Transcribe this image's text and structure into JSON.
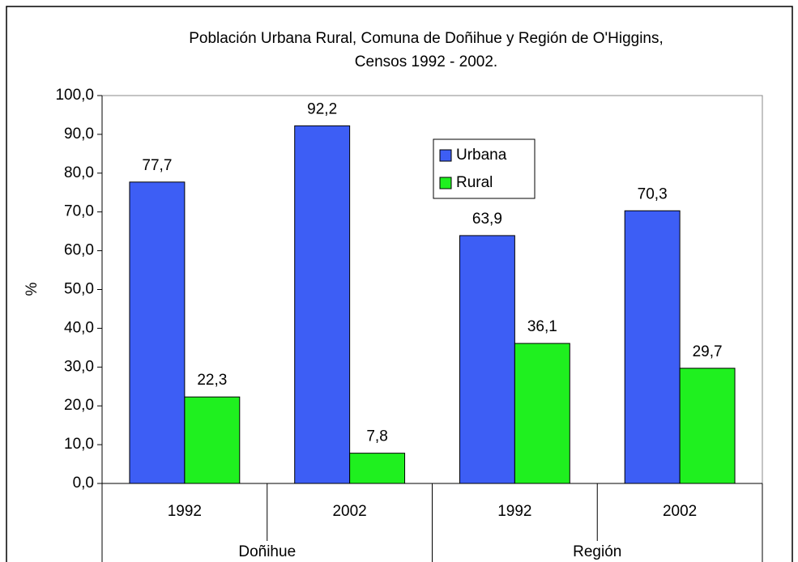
{
  "chart_data": {
    "type": "bar",
    "title": [
      "Población Urbana Rural, Comuna de Doñihue y Región de O'Higgins,",
      "Censos 1992 - 2002."
    ],
    "ylabel": "%",
    "categories": [
      "1992",
      "2002",
      "1992",
      "2002"
    ],
    "groups": [
      "Doñihue",
      "Región"
    ],
    "series": [
      {
        "name": "Urbana",
        "color": "#3d5ef5",
        "values": [
          77.7,
          92.2,
          63.9,
          70.3
        ],
        "value_labels": [
          "77,7",
          "92,2",
          "63,9",
          "70,3"
        ]
      },
      {
        "name": "Rural",
        "color": "#1ff01f",
        "values": [
          22.3,
          7.8,
          36.1,
          29.7
        ],
        "value_labels": [
          "22,3",
          "7,8",
          "36,1",
          "29,7"
        ]
      }
    ],
    "ylim": [
      0,
      100
    ],
    "yticks": [
      {
        "value": 0,
        "label": "0,0"
      },
      {
        "value": 10,
        "label": "10,0"
      },
      {
        "value": 20,
        "label": "20,0"
      },
      {
        "value": 30,
        "label": "30,0"
      },
      {
        "value": 40,
        "label": "40,0"
      },
      {
        "value": 50,
        "label": "50,0"
      },
      {
        "value": 60,
        "label": "60,0"
      },
      {
        "value": 70,
        "label": "70,0"
      },
      {
        "value": 80,
        "label": "80,0"
      },
      {
        "value": 90,
        "label": "90,0"
      },
      {
        "value": 100,
        "label": "100,0"
      }
    ],
    "grid": false,
    "legend": "upper center"
  }
}
